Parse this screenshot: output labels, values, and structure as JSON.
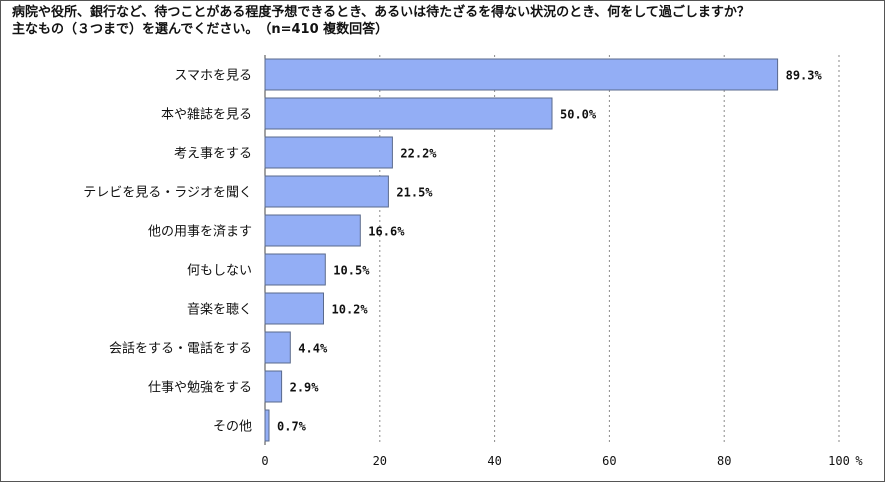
{
  "title_line1": "病院や役所、銀行など、待つことがある程度予想できるとき、あるいは待たざるを得ない状況のとき、何をして過ごしますか？",
  "title_line2": "主なもの（３つまで）を選んでください。　（n=410 複数回答）",
  "chart_data": {
    "type": "bar",
    "orientation": "horizontal",
    "categories": [
      "スマホを見る",
      "本や雑誌を見る",
      "考え事をする",
      "テレビを見る・ラジオを聞く",
      "他の用事を済ます",
      "何もしない",
      "音楽を聴く",
      "会話をする・電話をする",
      "仕事や勉強をする",
      "その他"
    ],
    "values": [
      89.3,
      50.0,
      22.2,
      21.5,
      16.6,
      10.5,
      10.2,
      4.4,
      2.9,
      0.7
    ],
    "value_labels": [
      "89.3%",
      "50.0%",
      "22.2%",
      "21.5%",
      "16.6%",
      "10.5%",
      "10.2%",
      "4.4%",
      "2.9%",
      "0.7%"
    ],
    "xlim": [
      0,
      100
    ],
    "xticks": [
      0,
      20,
      40,
      60,
      80,
      100
    ],
    "x_unit": "%",
    "grid": true,
    "bar_color": "#93aef5",
    "bar_edge": "#5a6a8c"
  }
}
